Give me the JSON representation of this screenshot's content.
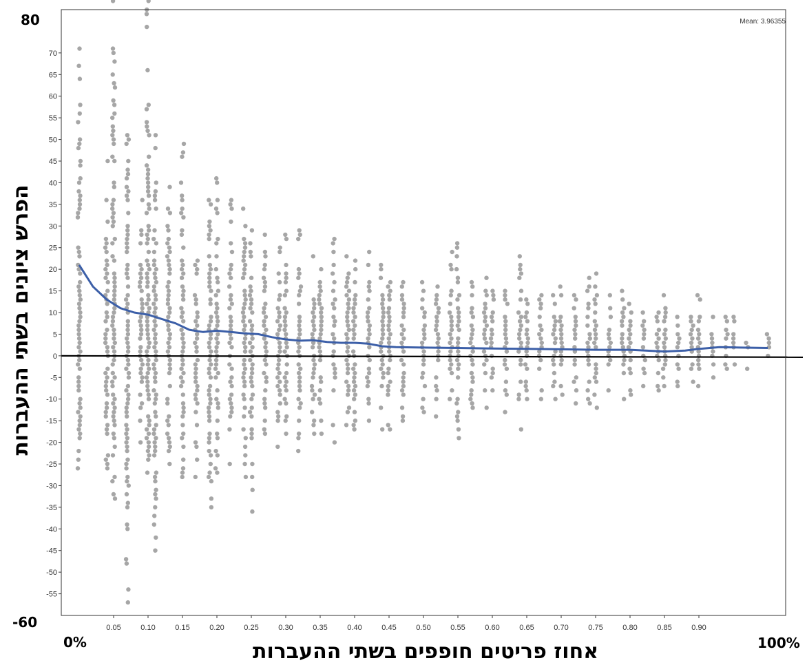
{
  "chart_data": {
    "type": "scatter",
    "title": "",
    "xlabel": "אחוז פריטים חופפים בשתי ההעברות",
    "ylabel": "הפרש ציונים בשתי ההעברות",
    "xlim": [
      0,
      1
    ],
    "ylim": [
      -60,
      80
    ],
    "x_ticks": [
      0.05,
      0.1,
      0.15,
      0.2,
      0.25,
      0.3,
      0.35,
      0.4,
      0.45,
      0.5,
      0.55,
      0.6,
      0.65,
      0.7,
      0.75,
      0.8,
      0.85,
      0.9
    ],
    "x_tick_labels": [
      "0.05",
      "0.10",
      "0.15",
      "0.20",
      "0.25",
      "0.30",
      "0.35",
      "0.40",
      "0.45",
      "0.50",
      "0.55",
      "0.60",
      "0.65",
      "0.70",
      "0.75",
      "0.80",
      "0.85",
      "0.90"
    ],
    "y_ticks": [
      -55,
      -50,
      -45,
      -40,
      -35,
      -30,
      -25,
      -20,
      -15,
      -10,
      -5,
      0,
      5,
      10,
      15,
      20,
      25,
      30,
      35,
      40,
      45,
      50,
      55,
      60,
      65,
      70
    ],
    "x_end_labels": {
      "left": "0%",
      "right": "100%"
    },
    "y_end_labels": {
      "top": "80",
      "bottom": "-60"
    },
    "annotation": "Mean: 3.96355",
    "reference_line_y": 0,
    "point_color": "#a6a6a6",
    "smooth_line_color": "#3c5fa8",
    "smooth_line": {
      "x": [
        0.0,
        0.02,
        0.04,
        0.06,
        0.08,
        0.1,
        0.12,
        0.14,
        0.16,
        0.18,
        0.2,
        0.22,
        0.24,
        0.26,
        0.28,
        0.3,
        0.32,
        0.34,
        0.36,
        0.38,
        0.4,
        0.42,
        0.44,
        0.46,
        0.5,
        0.55,
        0.6,
        0.65,
        0.7,
        0.75,
        0.8,
        0.85,
        0.88,
        0.9,
        0.93,
        0.96,
        1.0
      ],
      "y": [
        21,
        16,
        13,
        11,
        10,
        9.5,
        8.5,
        7.5,
        6,
        5.5,
        5.8,
        5.5,
        5.2,
        5,
        4.3,
        3.8,
        3.5,
        3.6,
        3.2,
        3.0,
        3.0,
        2.8,
        2.2,
        2.0,
        1.9,
        1.8,
        1.7,
        1.6,
        1.5,
        1.4,
        1.4,
        1.0,
        1.2,
        1.6,
        2.0,
        1.9,
        1.8
      ]
    },
    "scatter": {
      "x_positions": [
        0.0,
        0.04,
        0.05,
        0.07,
        0.09,
        0.1,
        0.11,
        0.13,
        0.15,
        0.17,
        0.19,
        0.2,
        0.22,
        0.24,
        0.25,
        0.27,
        0.29,
        0.3,
        0.32,
        0.34,
        0.35,
        0.37,
        0.39,
        0.4,
        0.42,
        0.44,
        0.45,
        0.47,
        0.5,
        0.52,
        0.54,
        0.55,
        0.57,
        0.59,
        0.6,
        0.62,
        0.64,
        0.65,
        0.67,
        0.69,
        0.7,
        0.72,
        0.74,
        0.75,
        0.77,
        0.79,
        0.8,
        0.82,
        0.84,
        0.85,
        0.87,
        0.89,
        0.9,
        0.92,
        0.94,
        0.95,
        0.97,
        1.0
      ],
      "y_max": [
        71,
        45,
        82,
        51,
        36,
        82,
        51,
        39,
        49,
        22,
        36,
        41,
        36,
        34,
        29,
        28,
        25,
        28,
        29,
        23,
        20,
        27,
        23,
        22,
        24,
        21,
        17,
        17,
        17,
        16,
        24,
        26,
        17,
        18,
        15,
        15,
        23,
        13,
        14,
        14,
        16,
        14,
        18,
        19,
        14,
        15,
        12,
        10,
        10,
        14,
        9,
        9,
        14,
        9,
        9,
        9,
        3,
        5
      ],
      "y_min": [
        -26,
        -26,
        -33,
        -57,
        -20,
        -27,
        -45,
        -25,
        -28,
        -28,
        -35,
        -27,
        -25,
        -28,
        -36,
        -18,
        -21,
        -18,
        -22,
        -18,
        -18,
        -20,
        -16,
        -17,
        -15,
        -17,
        -17,
        -15,
        -13,
        -14,
        -10,
        -19,
        -12,
        -12,
        -8,
        -13,
        -17,
        -10,
        -10,
        -10,
        -9,
        -11,
        -11,
        -12,
        -8,
        -10,
        -9,
        -7,
        -8,
        -7,
        -7,
        -6,
        -7,
        -5,
        -3,
        -2,
        -3,
        0
      ]
    }
  }
}
